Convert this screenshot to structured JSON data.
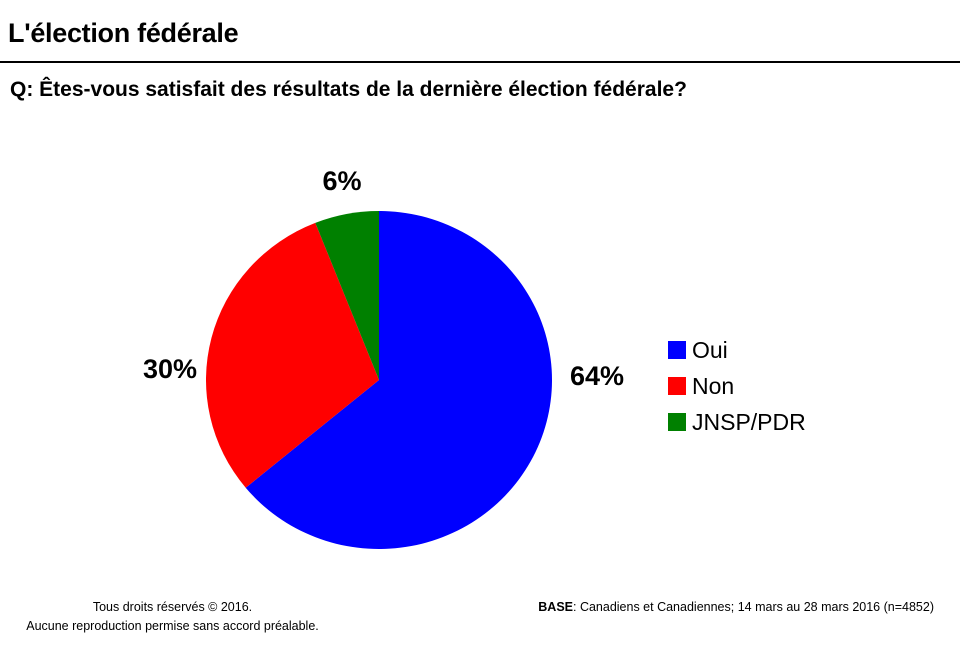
{
  "header": {
    "title": "L'élection fédérale",
    "question": "Q: Êtes-vous satisfait des résultats de la dernière élection fédérale?"
  },
  "chart_data": {
    "type": "pie",
    "title": "",
    "slices": [
      {
        "label": "Oui",
        "value": 64,
        "display": "64%",
        "color": "#0000ff"
      },
      {
        "label": "Non",
        "value": 30,
        "display": "30%",
        "color": "#ff0000"
      },
      {
        "label": "JNSP/PDR",
        "value": 6,
        "display": "6%",
        "color": "#008000"
      }
    ],
    "legend_position": "right",
    "start": "top",
    "direction": "clockwise"
  },
  "footer": {
    "copyright_line1": "Tous droits réservés © 2016.",
    "copyright_line2": "Aucune reproduction permise sans accord préalable.",
    "base_label": "BASE",
    "base_text": ": Canadiens et Canadiennes; 14 mars au 28 mars 2016 (n=4852)"
  }
}
